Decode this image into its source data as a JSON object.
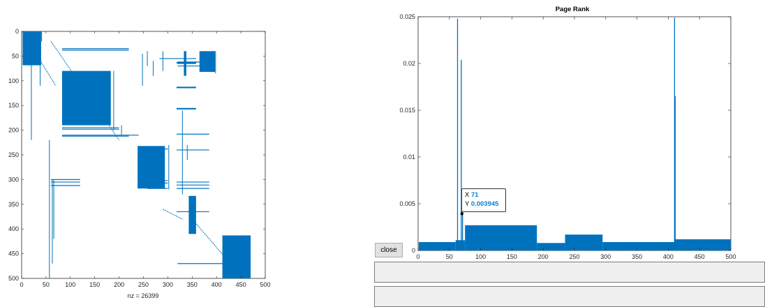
{
  "colors": {
    "accent": "#0072bd",
    "axis": "#262626",
    "tooltip_value": "#0a7fd3"
  },
  "spy_plot": {
    "y_ticks": [
      "0",
      "50",
      "100",
      "150",
      "200",
      "250",
      "300",
      "350",
      "400",
      "450",
      "500"
    ],
    "x_ticks": [
      "0",
      "50",
      "100",
      "150",
      "200",
      "250",
      "300",
      "350",
      "400",
      "450",
      "500"
    ],
    "xlabel": "nz = 26399",
    "xlim": [
      0,
      500
    ],
    "ylim": [
      0,
      500
    ]
  },
  "chart_data": {
    "type": "bar",
    "title": "Page Rank",
    "xlabel": "",
    "ylabel": "",
    "xlim": [
      0,
      500
    ],
    "ylim": [
      0,
      0.025
    ],
    "x_ticks": [
      "0",
      "50",
      "100",
      "150",
      "200",
      "250",
      "300",
      "350",
      "400",
      "450",
      "500"
    ],
    "y_ticks": [
      "0",
      "0.005",
      "0.01",
      "0.015",
      "0.02",
      "0.025"
    ],
    "grid": false,
    "notable_bars": [
      {
        "x": 63,
        "y": 0.0248
      },
      {
        "x": 69,
        "y": 0.0204
      },
      {
        "x": 71,
        "y": 0.003945
      },
      {
        "x": 410,
        "y": 0.0249
      },
      {
        "x": 411,
        "y": 0.0165
      }
    ],
    "segments": [
      {
        "from": 1,
        "to": 60,
        "y": 0.0009
      },
      {
        "from": 60,
        "to": 75,
        "y": 0.0011
      },
      {
        "from": 75,
        "to": 190,
        "y": 0.0027
      },
      {
        "from": 190,
        "to": 235,
        "y": 0.0008
      },
      {
        "from": 235,
        "to": 295,
        "y": 0.0017
      },
      {
        "from": 295,
        "to": 410,
        "y": 0.0009
      },
      {
        "from": 410,
        "to": 500,
        "y": 0.0012
      }
    ]
  },
  "datatip": {
    "x_label": "X",
    "x_value": "71",
    "y_label": "Y",
    "y_value": "0.003945"
  },
  "controls": {
    "close_label": "close",
    "field1_value": "",
    "field2_value": ""
  }
}
